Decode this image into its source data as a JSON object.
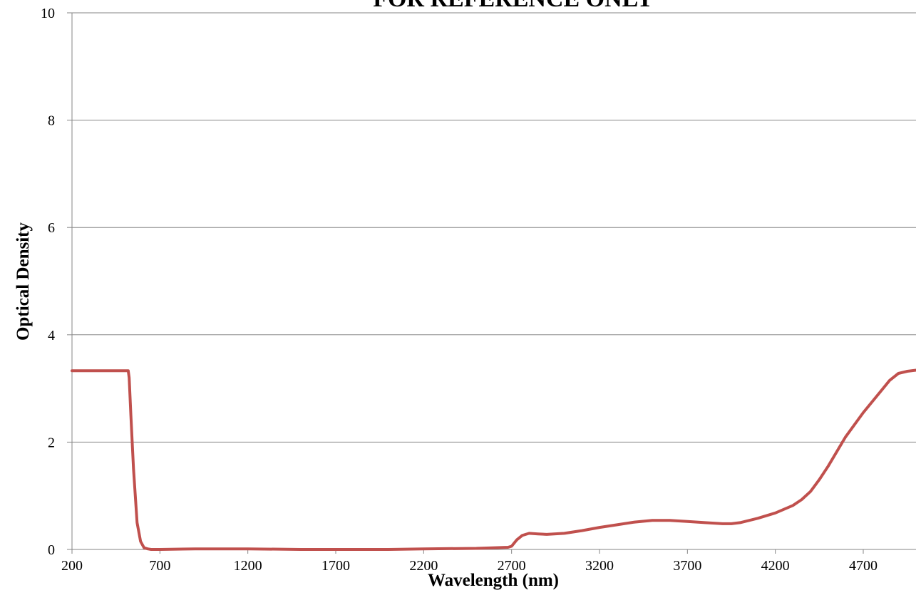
{
  "chart_data": {
    "type": "line",
    "title": "FOR REFERENCE ONLY",
    "xlabel": "Wavelength (nm)",
    "ylabel": "Optical Density",
    "xlim": [
      200,
      5000
    ],
    "ylim": [
      0,
      10
    ],
    "x_ticks": [
      "200",
      "700",
      "1200",
      "1700",
      "2200",
      "2700",
      "3200",
      "3700",
      "4200",
      "4700"
    ],
    "y_ticks": [
      "0",
      "2",
      "4",
      "6",
      "8",
      "10"
    ],
    "grid": "horizontal",
    "colors": {
      "line": "#c0504d",
      "grid": "#868686",
      "axis": "#868686"
    },
    "series": [
      {
        "x": [
          200,
          400,
          520,
          525,
          535,
          550,
          570,
          590,
          610,
          630,
          650,
          700,
          900,
          1200,
          1500,
          1700,
          2000,
          2200,
          2500,
          2680,
          2700,
          2730,
          2760,
          2800,
          2850,
          2900,
          3000,
          3100,
          3200,
          3300,
          3400,
          3500,
          3600,
          3700,
          3800,
          3900,
          3950,
          4000,
          4100,
          4200,
          4300,
          4350,
          4400,
          4450,
          4500,
          4600,
          4700,
          4800,
          4850,
          4900,
          4950,
          5000
        ],
        "y": [
          3.33,
          3.33,
          3.33,
          3.2,
          2.5,
          1.5,
          0.5,
          0.15,
          0.03,
          0.01,
          0.0,
          0.0,
          0.01,
          0.01,
          0.0,
          0.0,
          0.0,
          0.01,
          0.02,
          0.04,
          0.06,
          0.18,
          0.26,
          0.3,
          0.29,
          0.28,
          0.3,
          0.35,
          0.41,
          0.46,
          0.51,
          0.54,
          0.54,
          0.52,
          0.5,
          0.48,
          0.48,
          0.5,
          0.58,
          0.68,
          0.82,
          0.93,
          1.08,
          1.3,
          1.55,
          2.1,
          2.55,
          2.95,
          3.15,
          3.28,
          3.32,
          3.34
        ]
      }
    ]
  }
}
